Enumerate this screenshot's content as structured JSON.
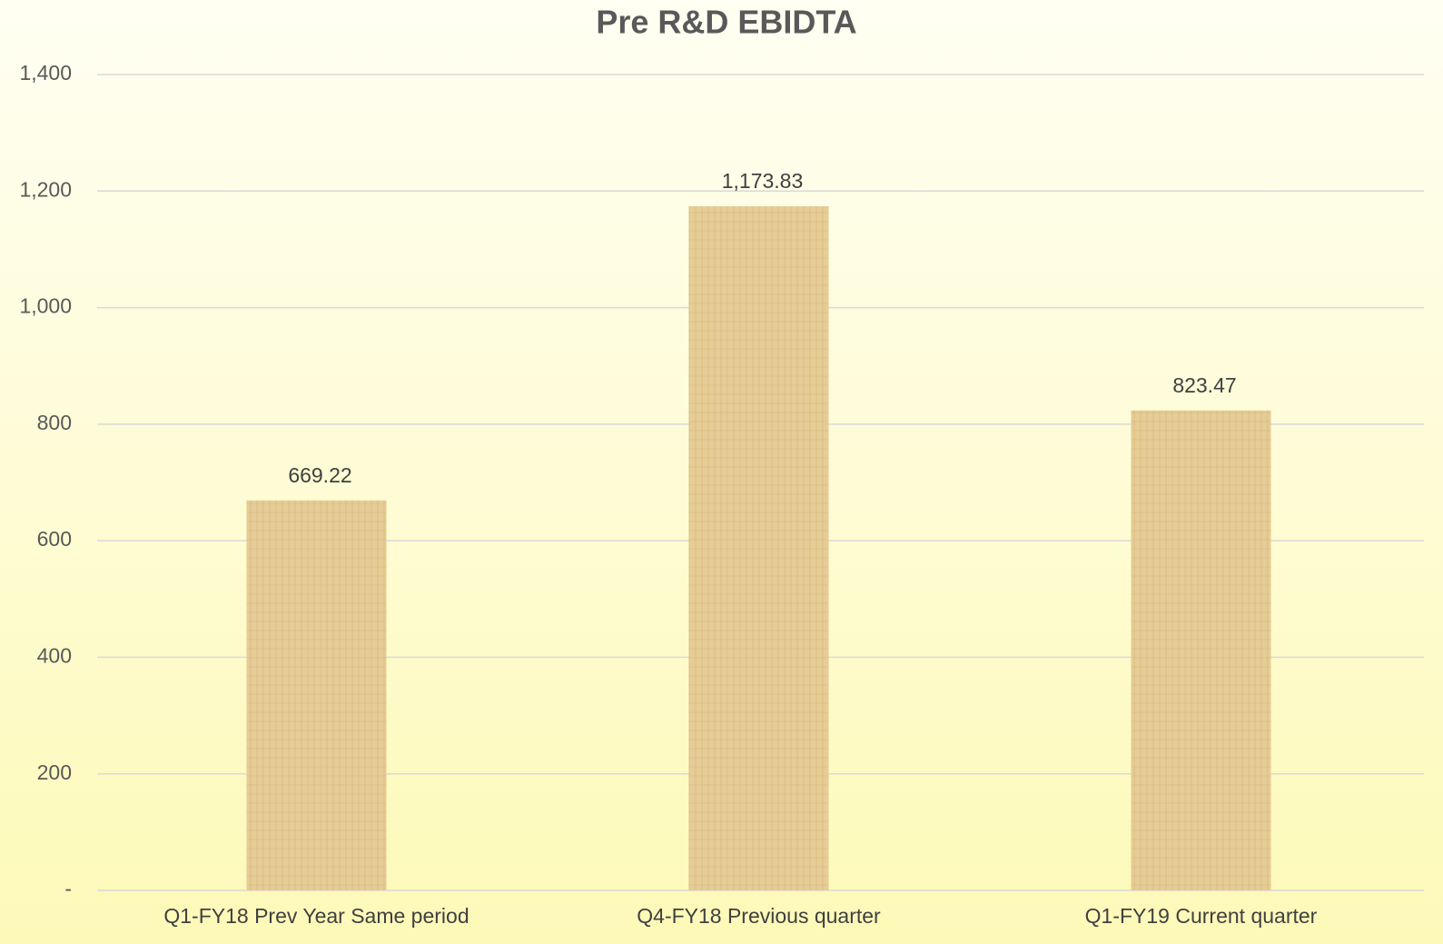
{
  "chart_data": {
    "type": "bar",
    "title": "Pre R&D EBIDTA",
    "categories": [
      "Q1-FY18 Prev Year Same period",
      "Q4-FY18 Previous quarter",
      "Q1-FY19 Current quarter"
    ],
    "values": [
      669.22,
      1173.83,
      823.47
    ],
    "value_labels": [
      "669.22",
      "1,173.83",
      "823.47"
    ],
    "color": "#e6cd96",
    "ylim": [
      0,
      1400
    ],
    "yticks": [
      {
        "value": 0,
        "label": "-"
      },
      200,
      400,
      600,
      800,
      {
        "value": 1000,
        "label": "1,000"
      },
      {
        "value": 1200,
        "label": "1,200"
      },
      {
        "value": 1400,
        "label": "1,400"
      }
    ],
    "grid": true
  }
}
